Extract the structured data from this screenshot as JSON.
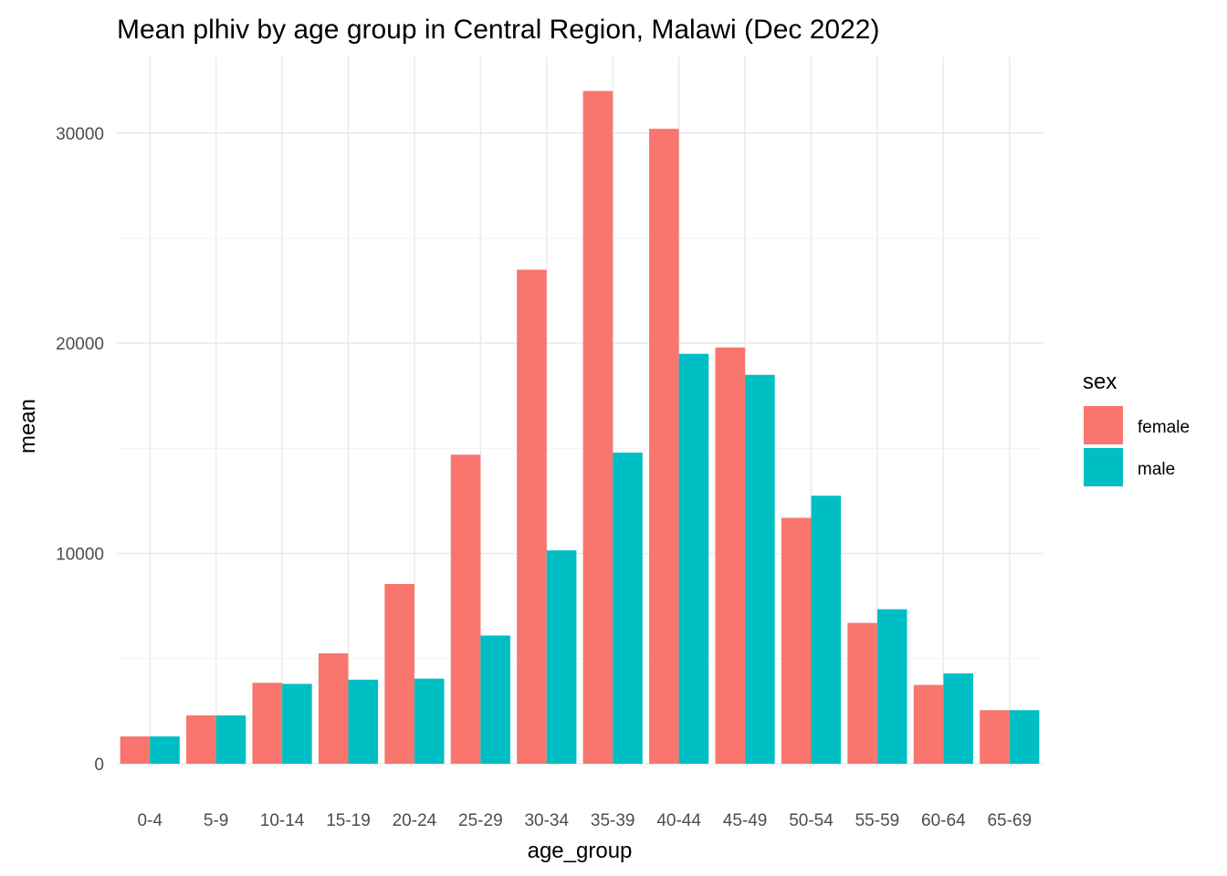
{
  "chart_data": {
    "type": "bar",
    "title": "Mean plhiv by age group in Central Region, Malawi (Dec 2022)",
    "xlabel": "age_group",
    "ylabel": "mean",
    "categories": [
      "0-4",
      "5-9",
      "10-14",
      "15-19",
      "20-24",
      "25-29",
      "30-34",
      "35-39",
      "40-44",
      "45-49",
      "50-54",
      "55-59",
      "60-64",
      "65-69"
    ],
    "series": [
      {
        "name": "female",
        "color": "#F8766D",
        "values": [
          1300,
          2300,
          3850,
          5250,
          8550,
          14700,
          23500,
          32000,
          30200,
          19800,
          11700,
          6700,
          3750,
          2550
        ]
      },
      {
        "name": "male",
        "color": "#00BFC4",
        "values": [
          1300,
          2300,
          3800,
          4000,
          4050,
          6100,
          10150,
          14800,
          19500,
          18500,
          12750,
          7350,
          4300,
          2550
        ]
      }
    ],
    "ylim": [
      0,
      32000
    ],
    "yticks": [
      "0",
      "10000",
      "20000",
      "30000"
    ],
    "ytick_values": [
      0,
      10000,
      20000,
      30000
    ],
    "grid": true,
    "legend": {
      "title": "sex",
      "position": "right"
    }
  }
}
